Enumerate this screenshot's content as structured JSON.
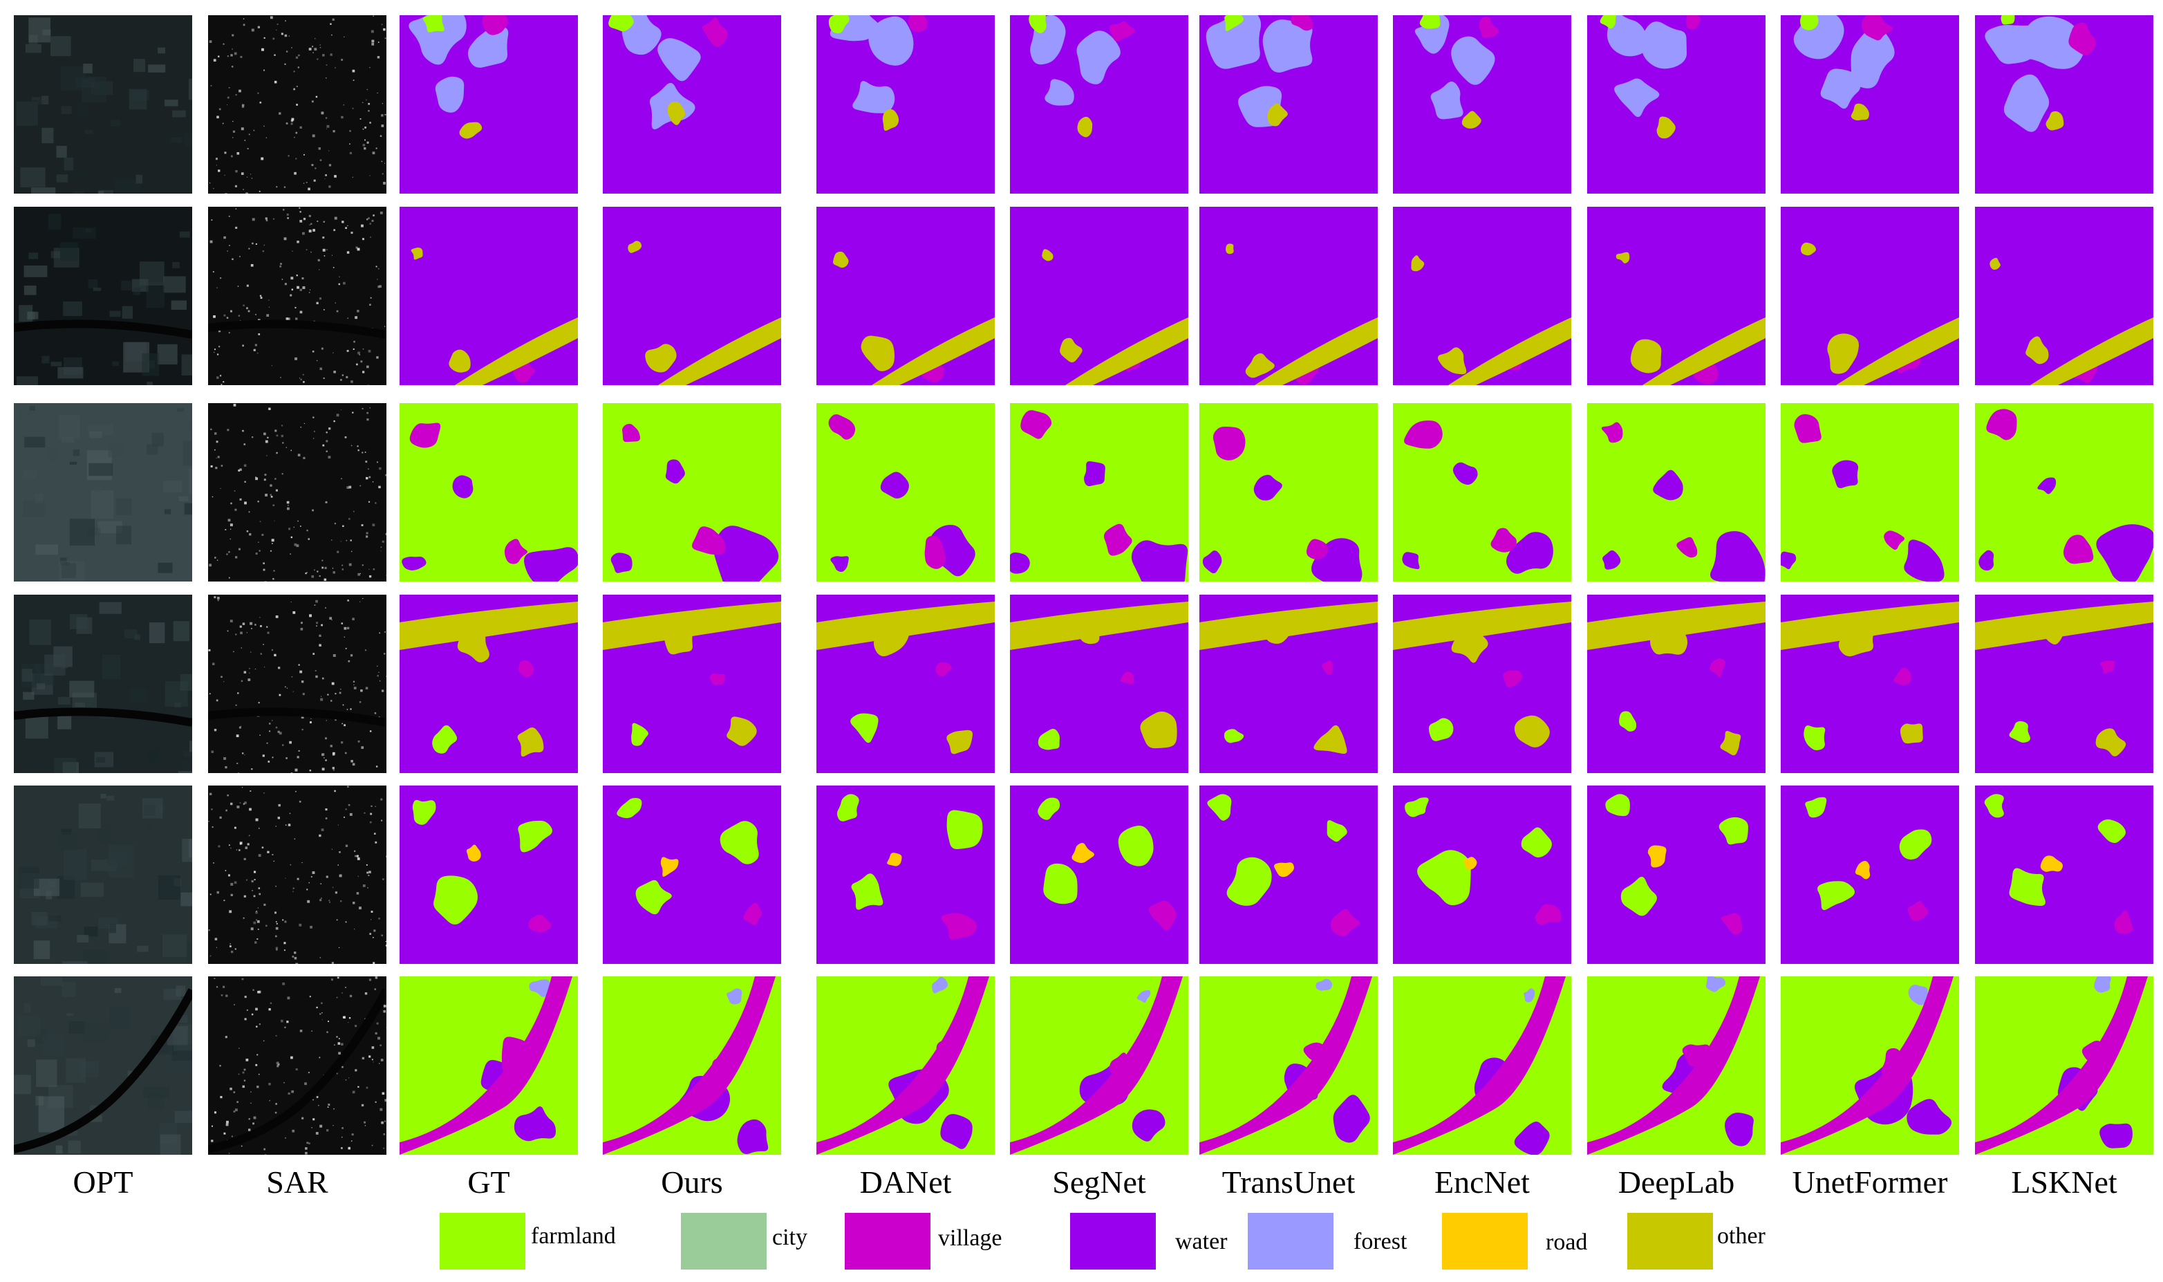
{
  "columns": [
    "OPT",
    "SAR",
    "GT",
    "Ours",
    "DANet",
    "SegNet",
    "TransUnet",
    "EncNet",
    "DeepLab",
    "UnetFormer",
    "LSKNet"
  ],
  "legend": [
    {
      "label": "farmland",
      "color": "#99ff00"
    },
    {
      "label": "city",
      "color": "#99cc99"
    },
    {
      "label": "village",
      "color": "#cc00cc"
    },
    {
      "label": "water",
      "color": "#9900ee"
    },
    {
      "label": "forest",
      "color": "#9999ff"
    },
    {
      "label": "road",
      "color": "#ffcc00"
    },
    {
      "label": "other",
      "color": "#c8c800"
    }
  ],
  "rows": [
    {
      "base": "water"
    },
    {
      "base": "water"
    },
    {
      "base": "farmland"
    },
    {
      "base": "water"
    },
    {
      "base": "water"
    },
    {
      "base": "farmland"
    }
  ]
}
